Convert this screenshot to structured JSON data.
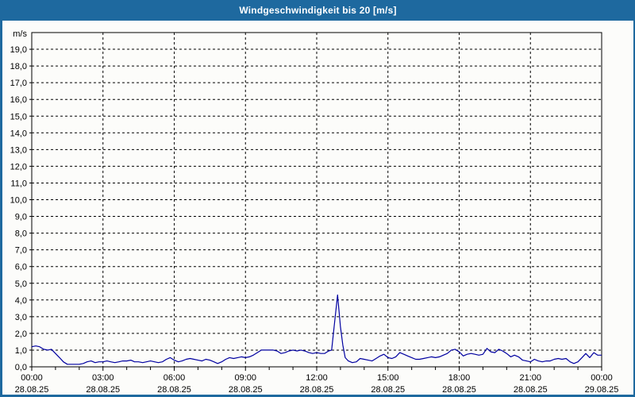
{
  "window": {
    "title": "Windgeschwindigkeit bis 20 [m/s]"
  },
  "colors": {
    "accent": "#1e699f",
    "title_text": "#ffffff",
    "background": "#fcfcfa",
    "plot_background": "#fcfcfa",
    "grid": "#000000",
    "axis": "#000000",
    "label_text": "#000000",
    "series_line": "#0000a0"
  },
  "chart_data": {
    "type": "line",
    "title": "Windgeschwindigkeit bis 20 [m/s]",
    "xlabel": "",
    "ylabel": "m/s",
    "ylim": [
      0,
      20
    ],
    "ytick_step": 1.0,
    "ytick_labels": [
      "0,0",
      "1,0",
      "2,0",
      "3,0",
      "4,0",
      "5,0",
      "6,0",
      "7,0",
      "8,0",
      "9,0",
      "10,0",
      "11,0",
      "12,0",
      "13,0",
      "14,0",
      "15,0",
      "16,0",
      "17,0",
      "18,0",
      "19,0"
    ],
    "x_hours_range": [
      0,
      24
    ],
    "x_major_step_hours": 3,
    "x_minor_step_hours": 1,
    "grid": "dashed",
    "legend": "none",
    "xticks": [
      {
        "hour": 0,
        "time": "00:00",
        "date": "28.08.25"
      },
      {
        "hour": 3,
        "time": "03:00",
        "date": "28.08.25"
      },
      {
        "hour": 6,
        "time": "06:00",
        "date": "28.08.25"
      },
      {
        "hour": 9,
        "time": "09:00",
        "date": "28.08.25"
      },
      {
        "hour": 12,
        "time": "12:00",
        "date": "28.08.25"
      },
      {
        "hour": 15,
        "time": "15:00",
        "date": "28.08.25"
      },
      {
        "hour": 18,
        "time": "18:00",
        "date": "28.08.25"
      },
      {
        "hour": 21,
        "time": "21:00",
        "date": "28.08.25"
      },
      {
        "hour": 24,
        "time": "00:00",
        "date": "29.08.25"
      }
    ],
    "series": [
      {
        "name": "Windgeschwindigkeit",
        "color": "#0000a0",
        "points": [
          [
            0.0,
            1.2
          ],
          [
            0.17,
            1.25
          ],
          [
            0.33,
            1.2
          ],
          [
            0.5,
            1.05
          ],
          [
            0.67,
            1.0
          ],
          [
            0.83,
            1.05
          ],
          [
            1.0,
            0.8
          ],
          [
            1.17,
            0.55
          ],
          [
            1.33,
            0.3
          ],
          [
            1.5,
            0.15
          ],
          [
            1.67,
            0.15
          ],
          [
            1.83,
            0.15
          ],
          [
            2.0,
            0.15
          ],
          [
            2.17,
            0.2
          ],
          [
            2.33,
            0.3
          ],
          [
            2.5,
            0.35
          ],
          [
            2.67,
            0.25
          ],
          [
            2.83,
            0.3
          ],
          [
            3.0,
            0.3
          ],
          [
            3.17,
            0.35
          ],
          [
            3.33,
            0.3
          ],
          [
            3.5,
            0.25
          ],
          [
            3.67,
            0.3
          ],
          [
            3.83,
            0.35
          ],
          [
            4.0,
            0.35
          ],
          [
            4.17,
            0.4
          ],
          [
            4.33,
            0.3
          ],
          [
            4.5,
            0.3
          ],
          [
            4.67,
            0.25
          ],
          [
            4.83,
            0.3
          ],
          [
            5.0,
            0.35
          ],
          [
            5.17,
            0.3
          ],
          [
            5.33,
            0.25
          ],
          [
            5.5,
            0.3
          ],
          [
            5.67,
            0.45
          ],
          [
            5.83,
            0.55
          ],
          [
            6.0,
            0.4
          ],
          [
            6.17,
            0.3
          ],
          [
            6.33,
            0.35
          ],
          [
            6.5,
            0.45
          ],
          [
            6.67,
            0.5
          ],
          [
            6.83,
            0.45
          ],
          [
            7.0,
            0.4
          ],
          [
            7.17,
            0.35
          ],
          [
            7.33,
            0.45
          ],
          [
            7.5,
            0.4
          ],
          [
            7.67,
            0.3
          ],
          [
            7.83,
            0.2
          ],
          [
            8.0,
            0.3
          ],
          [
            8.17,
            0.45
          ],
          [
            8.33,
            0.55
          ],
          [
            8.5,
            0.5
          ],
          [
            8.67,
            0.55
          ],
          [
            8.83,
            0.6
          ],
          [
            9.0,
            0.55
          ],
          [
            9.17,
            0.6
          ],
          [
            9.33,
            0.7
          ],
          [
            9.5,
            0.85
          ],
          [
            9.67,
            1.0
          ],
          [
            9.83,
            1.0
          ],
          [
            10.0,
            1.0
          ],
          [
            10.17,
            1.0
          ],
          [
            10.33,
            0.95
          ],
          [
            10.5,
            0.8
          ],
          [
            10.67,
            0.85
          ],
          [
            10.83,
            0.95
          ],
          [
            11.0,
            1.0
          ],
          [
            11.17,
            0.95
          ],
          [
            11.33,
            1.0
          ],
          [
            11.5,
            0.95
          ],
          [
            11.67,
            0.85
          ],
          [
            11.83,
            0.8
          ],
          [
            12.0,
            0.85
          ],
          [
            12.17,
            0.8
          ],
          [
            12.33,
            0.8
          ],
          [
            12.5,
            0.95
          ],
          [
            12.63,
            1.0
          ],
          [
            12.75,
            2.6
          ],
          [
            12.88,
            4.3
          ],
          [
            13.0,
            2.4
          ],
          [
            13.1,
            1.3
          ],
          [
            13.2,
            0.55
          ],
          [
            13.33,
            0.35
          ],
          [
            13.5,
            0.25
          ],
          [
            13.67,
            0.3
          ],
          [
            13.83,
            0.5
          ],
          [
            14.0,
            0.45
          ],
          [
            14.17,
            0.4
          ],
          [
            14.33,
            0.35
          ],
          [
            14.5,
            0.5
          ],
          [
            14.67,
            0.65
          ],
          [
            14.83,
            0.75
          ],
          [
            15.0,
            0.55
          ],
          [
            15.17,
            0.5
          ],
          [
            15.33,
            0.6
          ],
          [
            15.5,
            0.85
          ],
          [
            15.67,
            0.75
          ],
          [
            15.83,
            0.65
          ],
          [
            16.0,
            0.55
          ],
          [
            16.17,
            0.45
          ],
          [
            16.33,
            0.45
          ],
          [
            16.5,
            0.5
          ],
          [
            16.67,
            0.55
          ],
          [
            16.83,
            0.6
          ],
          [
            17.0,
            0.55
          ],
          [
            17.17,
            0.6
          ],
          [
            17.33,
            0.7
          ],
          [
            17.5,
            0.8
          ],
          [
            17.67,
            1.0
          ],
          [
            17.83,
            1.05
          ],
          [
            18.0,
            0.9
          ],
          [
            18.17,
            0.65
          ],
          [
            18.33,
            0.75
          ],
          [
            18.5,
            0.8
          ],
          [
            18.67,
            0.75
          ],
          [
            18.83,
            0.7
          ],
          [
            19.0,
            0.75
          ],
          [
            19.17,
            1.1
          ],
          [
            19.33,
            0.9
          ],
          [
            19.5,
            0.85
          ],
          [
            19.67,
            1.05
          ],
          [
            19.83,
            0.95
          ],
          [
            20.0,
            0.8
          ],
          [
            20.17,
            0.6
          ],
          [
            20.33,
            0.7
          ],
          [
            20.5,
            0.6
          ],
          [
            20.67,
            0.4
          ],
          [
            20.83,
            0.35
          ],
          [
            21.0,
            0.3
          ],
          [
            21.17,
            0.45
          ],
          [
            21.33,
            0.35
          ],
          [
            21.5,
            0.3
          ],
          [
            21.67,
            0.35
          ],
          [
            21.83,
            0.35
          ],
          [
            22.0,
            0.45
          ],
          [
            22.17,
            0.5
          ],
          [
            22.33,
            0.45
          ],
          [
            22.5,
            0.5
          ],
          [
            22.67,
            0.3
          ],
          [
            22.83,
            0.2
          ],
          [
            23.0,
            0.3
          ],
          [
            23.17,
            0.55
          ],
          [
            23.33,
            0.8
          ],
          [
            23.5,
            0.55
          ],
          [
            23.67,
            0.85
          ],
          [
            23.83,
            0.7
          ],
          [
            24.0,
            0.7
          ]
        ]
      }
    ]
  }
}
